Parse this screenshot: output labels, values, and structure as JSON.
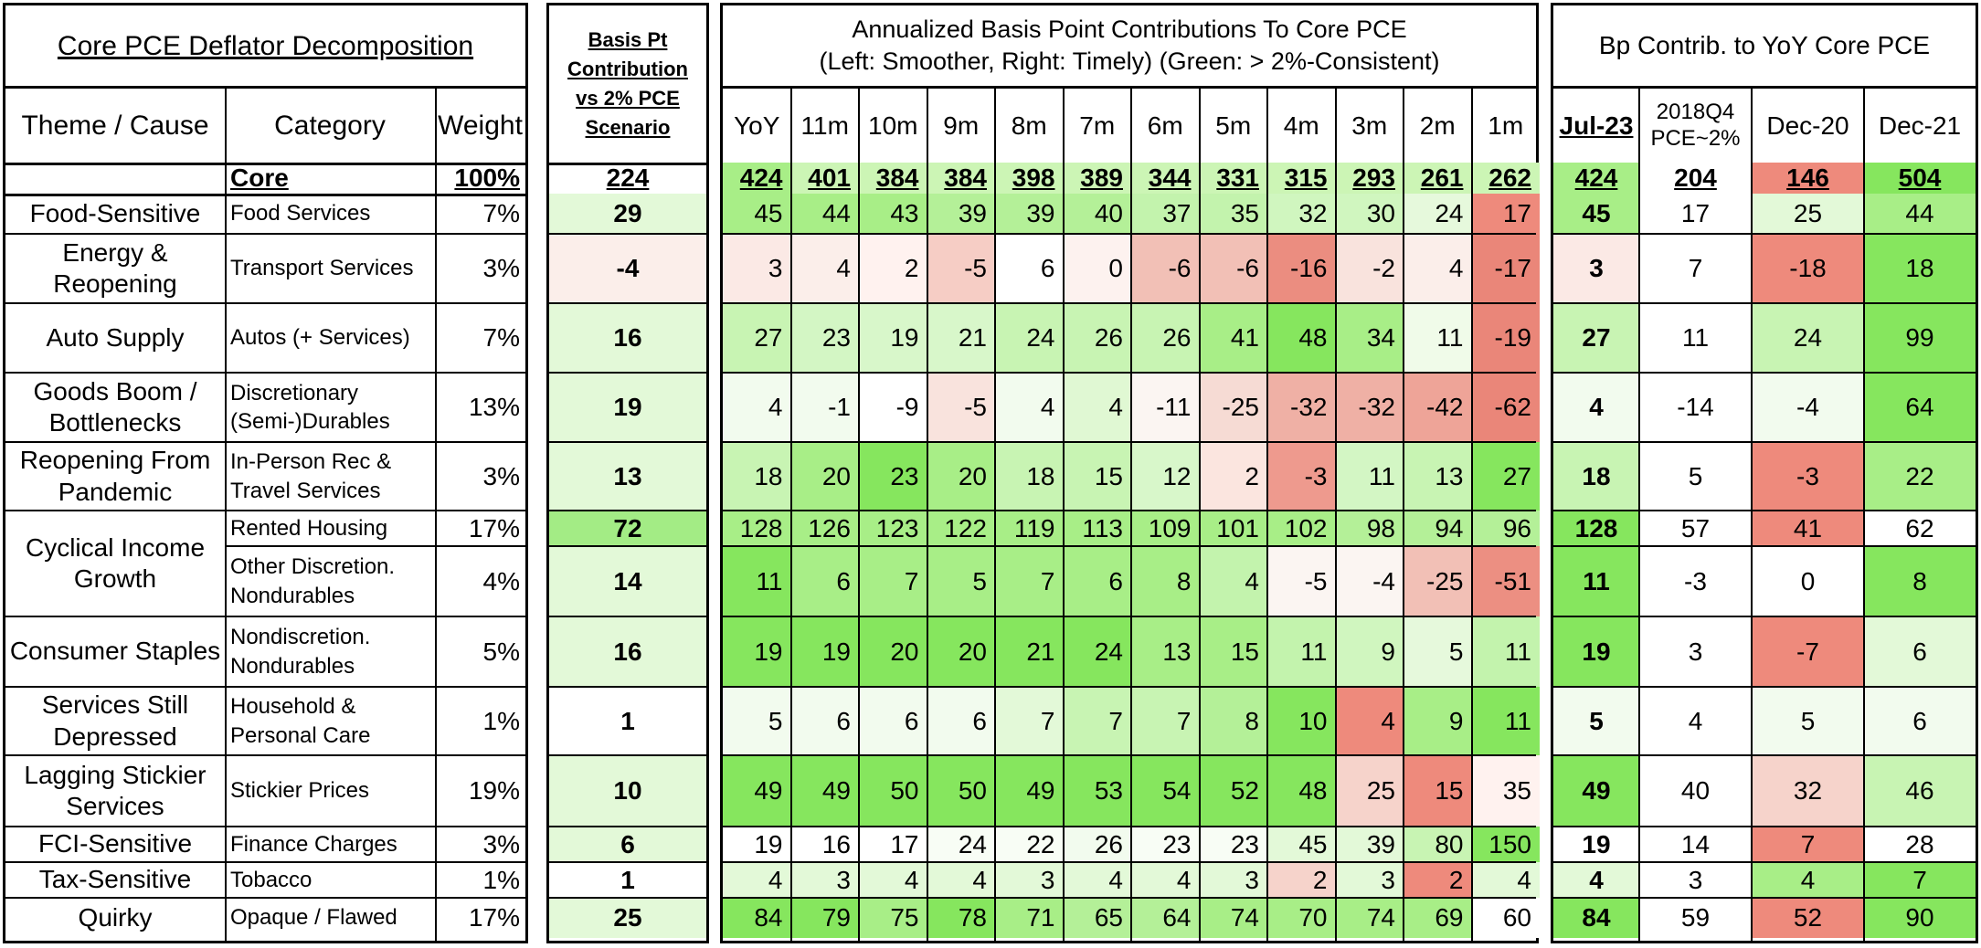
{
  "panel1": {
    "title": "Core PCE Deflator Decomposition",
    "headers": {
      "theme": "Theme / Cause",
      "category": "Category",
      "weight": "Weight"
    },
    "core": {
      "category": "Core",
      "weight": "100%"
    },
    "themes": [
      "Food-Sensitive",
      "Energy &\nReopening",
      "Auto Supply",
      "Goods Boom /\nBottlenecks",
      "Reopening From\nPandemic",
      "Cyclical Income\nGrowth",
      "Consumer Staples",
      "Services Still\nDepressed",
      "Lagging Stickier\nServices",
      "FCI-Sensitive",
      "Tax-Sensitive",
      "Quirky"
    ],
    "rows": [
      {
        "category": "Food Services",
        "weight": "7%"
      },
      {
        "category": "Transport Services",
        "weight": "3%"
      },
      {
        "category": "Autos (+ Services)",
        "weight": "7%"
      },
      {
        "category": "Discretionary\n(Semi-)Durables",
        "weight": "13%"
      },
      {
        "category": "In-Person Rec &\nTravel Services",
        "weight": "3%"
      },
      {
        "category": "Rented Housing",
        "weight": "17%"
      },
      {
        "category": "Other Discretion.\nNondurables",
        "weight": "4%"
      },
      {
        "category": "Nondiscretion.\nNondurables",
        "weight": "5%"
      },
      {
        "category": "Household &\nPersonal Care",
        "weight": "1%"
      },
      {
        "category": "Stickier Prices",
        "weight": "19%"
      },
      {
        "category": "Finance Charges",
        "weight": "3%"
      },
      {
        "category": "Tobacco",
        "weight": "1%"
      },
      {
        "category": "Opaque / Flawed",
        "weight": "17%"
      }
    ]
  },
  "panel2": {
    "title": "Basis Pt\nContribution\nvs 2% PCE\nScenario",
    "core": "224",
    "values": [
      "29",
      "-4",
      "16",
      "19",
      "13",
      "72",
      "14",
      "16",
      "1",
      "10",
      "6",
      "1",
      "25"
    ],
    "colors": [
      "#e3f9d8",
      "#fbeeea",
      "#e3f9d8",
      "#e3f9d8",
      "#e3f9d8",
      "#a3ec85",
      "#e3f9d8",
      "#e3f9d8",
      "#ffffff",
      "#e3f9d8",
      "#e3f9d8",
      "#ffffff",
      "#e3f9d8"
    ]
  },
  "panel3": {
    "title": "Annualized Basis Point Contributions To Core PCE\n(Left: Smoother, Right: Timely) (Green: > 2%-Consistent)",
    "columns": [
      "YoY",
      "11m",
      "10m",
      "9m",
      "8m",
      "7m",
      "6m",
      "5m",
      "4m",
      "3m",
      "2m",
      "1m"
    ],
    "core": [
      "424",
      "401",
      "384",
      "384",
      "398",
      "389",
      "344",
      "331",
      "315",
      "293",
      "261",
      "262"
    ],
    "core_colors": [
      "#a8ee87",
      "#ccf5b5",
      "#ccf5b5",
      "#ccf5b5",
      "#ccf5b5",
      "#ccf5b5",
      "#ccf5b5",
      "#ccf5b5",
      "#ccf5b5",
      "#ccf5b5",
      "#ccf5b5",
      "#ccf5b5"
    ],
    "rows": [
      [
        "45",
        "44",
        "43",
        "39",
        "39",
        "40",
        "37",
        "35",
        "32",
        "30",
        "24",
        "17"
      ],
      [
        "3",
        "4",
        "2",
        "-5",
        "6",
        "0",
        "-6",
        "-6",
        "-16",
        "-2",
        "4",
        "-17"
      ],
      [
        "27",
        "23",
        "19",
        "21",
        "24",
        "26",
        "26",
        "41",
        "48",
        "34",
        "11",
        "-19"
      ],
      [
        "4",
        "-1",
        "-9",
        "-5",
        "4",
        "4",
        "-11",
        "-25",
        "-32",
        "-32",
        "-42",
        "-62"
      ],
      [
        "18",
        "20",
        "23",
        "20",
        "18",
        "15",
        "12",
        "2",
        "-3",
        "11",
        "13",
        "27"
      ],
      [
        "128",
        "126",
        "123",
        "122",
        "119",
        "113",
        "109",
        "101",
        "102",
        "98",
        "94",
        "96"
      ],
      [
        "11",
        "6",
        "7",
        "5",
        "7",
        "6",
        "8",
        "4",
        "-5",
        "-4",
        "-25",
        "-51"
      ],
      [
        "19",
        "19",
        "20",
        "20",
        "21",
        "24",
        "13",
        "15",
        "11",
        "9",
        "5",
        "11"
      ],
      [
        "5",
        "6",
        "6",
        "6",
        "7",
        "7",
        "7",
        "8",
        "10",
        "4",
        "9",
        "11"
      ],
      [
        "49",
        "49",
        "50",
        "50",
        "49",
        "53",
        "54",
        "52",
        "48",
        "25",
        "15",
        "35"
      ],
      [
        "19",
        "16",
        "17",
        "24",
        "22",
        "26",
        "23",
        "23",
        "45",
        "39",
        "80",
        "150"
      ],
      [
        "4",
        "3",
        "4",
        "4",
        "3",
        "4",
        "4",
        "3",
        "2",
        "3",
        "2",
        "4"
      ],
      [
        "84",
        "79",
        "75",
        "78",
        "71",
        "65",
        "64",
        "74",
        "70",
        "74",
        "69",
        "60"
      ]
    ],
    "colors": [
      [
        "#a8ee87",
        "#a8ee87",
        "#a8ee87",
        "#b4f098",
        "#b4f098",
        "#b4f098",
        "#c3f3ad",
        "#c3f3ad",
        "#d0f6bf",
        "#d0f6bf",
        "#e6f9dc",
        "#ee8a7c"
      ],
      [
        "#fbe9e5",
        "#fbeeea",
        "#fff2ef",
        "#f6cdc5",
        "#ffffff",
        "#fdf2ef",
        "#f2c0b6",
        "#f2c0b6",
        "#eb8d80",
        "#f9e3dd",
        "#fbeeea",
        "#ea8679"
      ],
      [
        "#c8f4b3",
        "#d3f6c4",
        "#d8f7ca",
        "#d8f7ca",
        "#c8f4b3",
        "#c8f4b3",
        "#c8f4b3",
        "#a8ee87",
        "#86e65e",
        "#a8ee87",
        "#f0fbe9",
        "#ea8679"
      ],
      [
        "#f2fbee",
        "#f2fbee",
        "#ffffff",
        "#f9e3dd",
        "#f2fbee",
        "#e0f8d3",
        "#fbf5f2",
        "#f6dbd4",
        "#efb0a5",
        "#efb0a5",
        "#eea498",
        "#ea8679"
      ],
      [
        "#c8f4b3",
        "#a8ee87",
        "#86e65e",
        "#a8ee87",
        "#c8f4b3",
        "#c8f4b3",
        "#d8f7ca",
        "#fbe5df",
        "#ee9a8e",
        "#d3f6c4",
        "#c8f4b3",
        "#86e65e"
      ],
      [
        "#a8ee87",
        "#a8ee87",
        "#a8ee87",
        "#a8ee87",
        "#a8ee87",
        "#a8ee87",
        "#a8ee87",
        "#a8ee87",
        "#a8ee87",
        "#b4f098",
        "#b4f098",
        "#b4f098"
      ],
      [
        "#86e65e",
        "#a8ee87",
        "#a8ee87",
        "#a8ee87",
        "#a8ee87",
        "#a8ee87",
        "#a8ee87",
        "#c3f3ad",
        "#fbf5f2",
        "#fbf5f2",
        "#f2c0b6",
        "#ec8f82"
      ],
      [
        "#86e65e",
        "#86e65e",
        "#86e65e",
        "#86e65e",
        "#86e65e",
        "#86e65e",
        "#a8ee87",
        "#a8ee87",
        "#c3f3ad",
        "#d0f6bf",
        "#e6f9dc",
        "#c3f3ad"
      ],
      [
        "#f2fbee",
        "#f2fbee",
        "#f2fbee",
        "#f2fbee",
        "#e3f9d8",
        "#c8f4b3",
        "#c8f4b3",
        "#b4f098",
        "#86e65e",
        "#ee8a7c",
        "#a8ee87",
        "#86e65e"
      ],
      [
        "#86e65e",
        "#86e65e",
        "#86e65e",
        "#86e65e",
        "#86e65e",
        "#86e65e",
        "#86e65e",
        "#86e65e",
        "#86e65e",
        "#f6d3cb",
        "#ee8a7c",
        "#fff2ef"
      ],
      [
        "#ffffff",
        "#ffffff",
        "#ffffff",
        "#f8fdf5",
        "#f8fdf5",
        "#f2fbee",
        "#f8fdf5",
        "#f8fdf5",
        "#e3f9d8",
        "#e3f9d8",
        "#c8f4b3",
        "#86e65e"
      ],
      [
        "#e3f9d8",
        "#e3f9d8",
        "#e3f9d8",
        "#e3f9d8",
        "#e3f9d8",
        "#e3f9d8",
        "#e3f9d8",
        "#e3f9d8",
        "#f6d3cb",
        "#e3f9d8",
        "#ee8a7c",
        "#e3f9d8"
      ],
      [
        "#86e65e",
        "#86e65e",
        "#a8ee87",
        "#86e65e",
        "#a8ee87",
        "#b4f098",
        "#b4f098",
        "#a8ee87",
        "#a8ee87",
        "#a8ee87",
        "#a8ee87",
        "#ffffff"
      ]
    ]
  },
  "panel4": {
    "title": "Bp Contrib. to YoY Core PCE",
    "columns": [
      "Jul-23",
      "2018Q4\nPCE~2%",
      "Dec-20",
      "Dec-21"
    ],
    "core": [
      "424",
      "204",
      "146",
      "504"
    ],
    "core_colors": [
      "#a8ee87",
      "#ffffff",
      "#ee8a7c",
      "#86e65e"
    ],
    "rows": [
      [
        "45",
        "17",
        "25",
        "44"
      ],
      [
        "3",
        "7",
        "-18",
        "18"
      ],
      [
        "27",
        "11",
        "24",
        "99"
      ],
      [
        "4",
        "-14",
        "-4",
        "64"
      ],
      [
        "18",
        "5",
        "-3",
        "22"
      ],
      [
        "128",
        "57",
        "41",
        "62"
      ],
      [
        "11",
        "-3",
        "0",
        "8"
      ],
      [
        "19",
        "3",
        "-7",
        "6"
      ],
      [
        "5",
        "4",
        "5",
        "6"
      ],
      [
        "49",
        "40",
        "32",
        "46"
      ],
      [
        "19",
        "14",
        "7",
        "28"
      ],
      [
        "4",
        "3",
        "4",
        "7"
      ],
      [
        "84",
        "59",
        "52",
        "90"
      ]
    ],
    "colors": [
      [
        "#a8ee87",
        "#ffffff",
        "#e3f9d8",
        "#a8ee87"
      ],
      [
        "#fbe9e5",
        "#ffffff",
        "#ee8a7c",
        "#86e65e"
      ],
      [
        "#c8f4b3",
        "#ffffff",
        "#c8f4b3",
        "#86e65e"
      ],
      [
        "#f2fbee",
        "#ffffff",
        "#f2fbee",
        "#86e65e"
      ],
      [
        "#c8f4b3",
        "#ffffff",
        "#ee8a7c",
        "#a8ee87"
      ],
      [
        "#86e65e",
        "#ffffff",
        "#ee8a7c",
        "#ffffff"
      ],
      [
        "#86e65e",
        "#ffffff",
        "#ffffff",
        "#86e65e"
      ],
      [
        "#86e65e",
        "#ffffff",
        "#ee8a7c",
        "#e3f9d8"
      ],
      [
        "#f2fbee",
        "#ffffff",
        "#f2fbee",
        "#f2fbee"
      ],
      [
        "#86e65e",
        "#ffffff",
        "#f6d3cb",
        "#c8f4b3"
      ],
      [
        "#ffffff",
        "#ffffff",
        "#ee8a7c",
        "#ffffff"
      ],
      [
        "#e3f9d8",
        "#ffffff",
        "#a8ee87",
        "#86e65e"
      ],
      [
        "#86e65e",
        "#ffffff",
        "#ee8a7c",
        "#86e65e"
      ]
    ]
  },
  "chart_data": {
    "type": "table",
    "title": "Core PCE Deflator Decomposition",
    "row_labels": [
      "Core",
      "Food Services",
      "Transport Services",
      "Autos (+ Services)",
      "Discretionary (Semi-)Durables",
      "In-Person Rec & Travel Services",
      "Rented Housing",
      "Other Discretion. Nondurables",
      "Nondiscretion. Nondurables",
      "Household & Personal Care",
      "Stickier Prices",
      "Finance Charges",
      "Tobacco",
      "Opaque / Flawed"
    ],
    "weights_pct": [
      100,
      7,
      3,
      7,
      13,
      3,
      17,
      4,
      5,
      1,
      19,
      3,
      1,
      17
    ],
    "bp_vs_2pct_scenario": [
      224,
      29,
      -4,
      16,
      19,
      13,
      72,
      14,
      16,
      1,
      10,
      6,
      1,
      25
    ],
    "annualized_columns": [
      "YoY",
      "11m",
      "10m",
      "9m",
      "8m",
      "7m",
      "6m",
      "5m",
      "4m",
      "3m",
      "2m",
      "1m"
    ],
    "annualized_values": [
      [
        424,
        401,
        384,
        384,
        398,
        389,
        344,
        331,
        315,
        293,
        261,
        262
      ],
      [
        45,
        44,
        43,
        39,
        39,
        40,
        37,
        35,
        32,
        30,
        24,
        17
      ],
      [
        3,
        4,
        2,
        -5,
        6,
        0,
        -6,
        -6,
        -16,
        -2,
        4,
        -17
      ],
      [
        27,
        23,
        19,
        21,
        24,
        26,
        26,
        41,
        48,
        34,
        11,
        -19
      ],
      [
        4,
        -1,
        -9,
        -5,
        4,
        4,
        -11,
        -25,
        -32,
        -32,
        -42,
        -62
      ],
      [
        18,
        20,
        23,
        20,
        18,
        15,
        12,
        2,
        -3,
        11,
        13,
        27
      ],
      [
        128,
        126,
        123,
        122,
        119,
        113,
        109,
        101,
        102,
        98,
        94,
        96
      ],
      [
        11,
        6,
        7,
        5,
        7,
        6,
        8,
        4,
        -5,
        -4,
        -25,
        -51
      ],
      [
        19,
        19,
        20,
        20,
        21,
        24,
        13,
        15,
        11,
        9,
        5,
        11
      ],
      [
        5,
        6,
        6,
        6,
        7,
        7,
        7,
        8,
        10,
        4,
        9,
        11
      ],
      [
        49,
        49,
        50,
        50,
        49,
        53,
        54,
        52,
        48,
        25,
        15,
        35
      ],
      [
        19,
        16,
        17,
        24,
        22,
        26,
        23,
        23,
        45,
        39,
        80,
        150
      ],
      [
        4,
        3,
        4,
        4,
        3,
        4,
        4,
        3,
        2,
        3,
        2,
        4
      ],
      [
        84,
        79,
        75,
        78,
        71,
        65,
        64,
        74,
        70,
        74,
        69,
        60
      ]
    ],
    "yoy_columns": [
      "Jul-23",
      "2018Q4 PCE~2%",
      "Dec-20",
      "Dec-21"
    ],
    "yoy_values": [
      [
        424,
        204,
        146,
        504
      ],
      [
        45,
        17,
        25,
        44
      ],
      [
        3,
        7,
        -18,
        18
      ],
      [
        27,
        11,
        24,
        99
      ],
      [
        4,
        -14,
        -4,
        64
      ],
      [
        18,
        5,
        -3,
        22
      ],
      [
        128,
        57,
        41,
        62
      ],
      [
        11,
        -3,
        0,
        8
      ],
      [
        19,
        3,
        -7,
        6
      ],
      [
        5,
        4,
        5,
        6
      ],
      [
        49,
        40,
        32,
        46
      ],
      [
        19,
        14,
        7,
        28
      ],
      [
        4,
        3,
        4,
        7
      ],
      [
        84,
        59,
        52,
        90
      ]
    ]
  }
}
